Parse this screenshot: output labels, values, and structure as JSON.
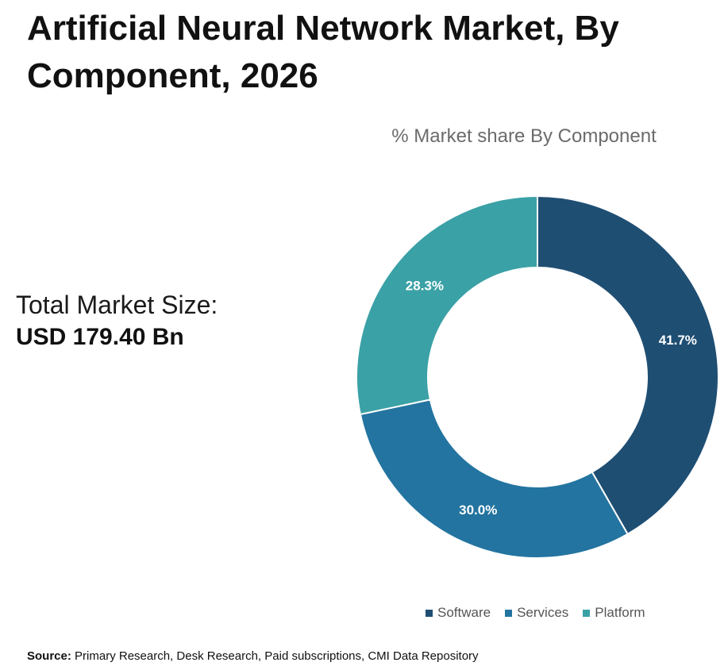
{
  "title_line1": "Artificial Neural Network Market, By",
  "title_line2": "Component, 2026",
  "total_label": "Total Market Size:",
  "total_value": "USD 179.40 Bn",
  "source_label": "Source:",
  "source_text": "Primary Research, Desk Research, Paid subscriptions, CMI Data Repository",
  "chart_data": {
    "type": "pie",
    "variant": "donut",
    "title": "% Market share By Component",
    "categories": [
      "Software",
      "Services",
      "Platform"
    ],
    "values": [
      41.7,
      30.0,
      28.3
    ],
    "value_labels": [
      "41.7%",
      "30.0%",
      "28.3%"
    ],
    "colors": [
      "#1f4e73",
      "#2374a0",
      "#3aa1a6"
    ],
    "legend_position": "bottom"
  }
}
